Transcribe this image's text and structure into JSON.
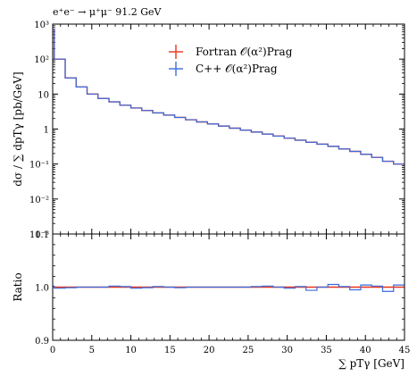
{
  "chart_data": [
    {
      "type": "line",
      "panel": "main",
      "title": "e⁺e⁻ → μ⁺μ⁻ 91.2 GeV",
      "ylabel": "dσ / ∑ dpTγ [pb/GeV]",
      "yscale": "log",
      "ylim": [
        0.001,
        1000
      ],
      "xlim": [
        0,
        45
      ],
      "y_ticks": [
        {
          "v": 0.001,
          "label": "10⁻³"
        },
        {
          "v": 0.01,
          "label": "10⁻²"
        },
        {
          "v": 0.1,
          "label": "10⁻¹"
        },
        {
          "v": 1,
          "label": "1"
        },
        {
          "v": 10,
          "label": "10"
        },
        {
          "v": 100,
          "label": "10²"
        },
        {
          "v": 1000,
          "label": "10³"
        }
      ],
      "legend_position": "top-right",
      "bin_edges": [
        0,
        0.2,
        1.6,
        3.0,
        4.4,
        5.8,
        7.2,
        8.6,
        10.0,
        11.4,
        12.8,
        14.2,
        15.6,
        17.0,
        18.4,
        19.8,
        21.2,
        22.6,
        24.0,
        25.4,
        26.8,
        28.2,
        29.6,
        31.0,
        32.4,
        33.8,
        35.2,
        36.6,
        38.0,
        39.4,
        40.8,
        42.2,
        43.6,
        45.0
      ],
      "series": [
        {
          "name": "Fortran 𝒪(α²)Prag",
          "color": "#e8341c",
          "values": [
            700,
            100,
            29,
            16,
            10,
            7.5,
            6.0,
            4.8,
            4.0,
            3.4,
            2.9,
            2.5,
            2.15,
            1.85,
            1.6,
            1.4,
            1.22,
            1.06,
            0.93,
            0.82,
            0.72,
            0.63,
            0.55,
            0.48,
            0.42,
            0.37,
            0.32,
            0.27,
            0.23,
            0.19,
            0.155,
            0.12,
            0.1
          ]
        },
        {
          "name": "C++ 𝒪(α²)Prag",
          "color": "#3a6bdc",
          "values": [
            700,
            100,
            29,
            16,
            10,
            7.5,
            6.0,
            4.8,
            4.0,
            3.4,
            2.9,
            2.5,
            2.15,
            1.85,
            1.6,
            1.4,
            1.22,
            1.06,
            0.93,
            0.82,
            0.72,
            0.63,
            0.55,
            0.48,
            0.42,
            0.37,
            0.32,
            0.27,
            0.23,
            0.19,
            0.155,
            0.12,
            0.1
          ]
        }
      ]
    },
    {
      "type": "line",
      "panel": "ratio",
      "ylabel": "Ratio",
      "xlabel": "∑ pTγ [GeV]",
      "ylim": [
        0.9,
        1.1
      ],
      "xlim": [
        0,
        45
      ],
      "y_ticks": [
        {
          "v": 0.9,
          "label": "0.9"
        },
        {
          "v": 1.0,
          "label": "1.0"
        },
        {
          "v": 1.1,
          "label": "1.1"
        }
      ],
      "x_ticks": [
        0,
        5,
        10,
        15,
        20,
        25,
        30,
        35,
        40,
        45
      ],
      "bin_edges": [
        0,
        0.2,
        1.6,
        3.0,
        4.4,
        5.8,
        7.2,
        8.6,
        10.0,
        11.4,
        12.8,
        14.2,
        15.6,
        17.0,
        18.4,
        19.8,
        21.2,
        22.6,
        24.0,
        25.4,
        26.8,
        28.2,
        29.6,
        31.0,
        32.4,
        33.8,
        35.2,
        36.6,
        38.0,
        39.4,
        40.8,
        42.2,
        43.6,
        45.0
      ],
      "series": [
        {
          "name": "Fortran 𝒪(α²)Prag",
          "color": "#e8341c",
          "values": [
            1.0,
            1.0,
            1.0,
            1.0,
            1.0,
            1.0,
            1.0,
            1.0,
            1.0,
            1.0,
            1.0,
            1.0,
            1.0,
            1.0,
            1.0,
            1.0,
            1.0,
            1.0,
            1.0,
            1.0,
            1.0,
            1.0,
            1.0,
            1.0,
            1.0,
            1.0,
            1.0,
            1.0,
            1.0,
            1.0,
            1.0,
            1.0,
            1.0
          ]
        },
        {
          "name": "C++ 𝒪(α²)Prag",
          "color": "#3a6bdc",
          "values": [
            1.002,
            0.998,
            0.999,
            1.0,
            1.0,
            1.0,
            1.002,
            1.001,
            0.998,
            0.999,
            1.001,
            1.0,
            0.999,
            1.0,
            1.0,
            1.0,
            1.0,
            1.0,
            1.0,
            1.001,
            1.002,
            1.0,
            0.998,
            1.001,
            0.994,
            1.0,
            1.005,
            1.001,
            0.995,
            1.004,
            1.002,
            0.992,
            1.004
          ]
        }
      ]
    }
  ]
}
